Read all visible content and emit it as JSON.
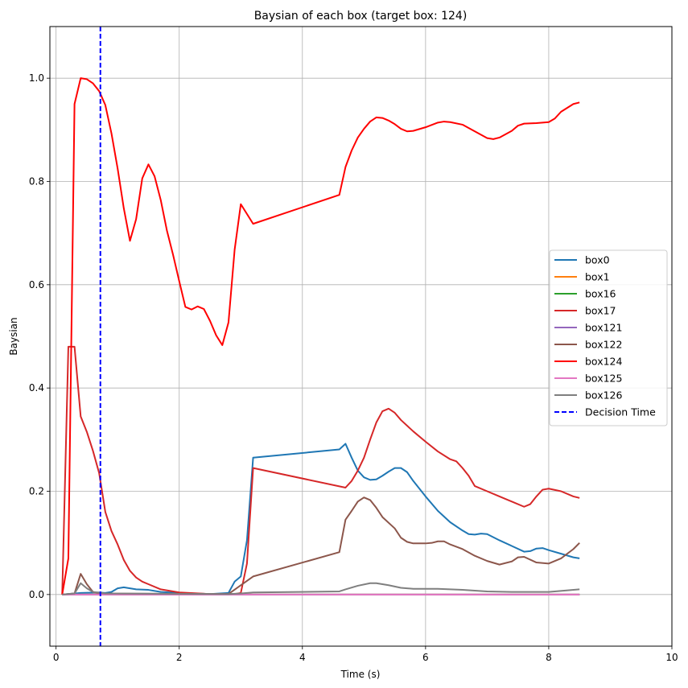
{
  "chart_data": {
    "type": "line",
    "title": "Baysian of each box (target box: 124)",
    "xlabel": "Time (s)",
    "ylabel": "Baysian",
    "xlim": [
      -0.1,
      10
    ],
    "ylim": [
      -0.1,
      1.1
    ],
    "x_ticks": [
      0,
      2,
      4,
      6,
      8,
      10
    ],
    "x_tick_labels": [
      "0",
      "2",
      "4",
      "6",
      "8",
      "10"
    ],
    "y_ticks": [
      0.0,
      0.2,
      0.4,
      0.6,
      0.8,
      1.0
    ],
    "y_tick_labels": [
      "0.0",
      "0.2",
      "0.4",
      "0.6",
      "0.8",
      "1.0"
    ],
    "grid": true,
    "legend_position": "center-right",
    "series": [
      {
        "name": "box0",
        "color": "#1f77b4",
        "style": "solid",
        "points": [
          [
            0.1,
            0
          ],
          [
            0.4,
            0.003
          ],
          [
            0.7,
            0.004
          ],
          [
            0.8,
            0.003
          ],
          [
            0.9,
            0.005
          ],
          [
            1.0,
            0.012
          ],
          [
            1.1,
            0.014
          ],
          [
            1.3,
            0.01
          ],
          [
            1.5,
            0.009
          ],
          [
            1.7,
            0.005
          ],
          [
            2.0,
            0.003
          ],
          [
            2.5,
            0.001
          ],
          [
            2.8,
            0.003
          ],
          [
            2.9,
            0.025
          ],
          [
            3.0,
            0.035
          ],
          [
            3.1,
            0.105
          ],
          [
            3.2,
            0.265
          ],
          [
            4.6,
            0.281
          ],
          [
            4.7,
            0.292
          ],
          [
            4.8,
            0.265
          ],
          [
            4.9,
            0.24
          ],
          [
            5.0,
            0.227
          ],
          [
            5.1,
            0.222
          ],
          [
            5.2,
            0.223
          ],
          [
            5.3,
            0.23
          ],
          [
            5.4,
            0.238
          ],
          [
            5.5,
            0.245
          ],
          [
            5.6,
            0.245
          ],
          [
            5.7,
            0.237
          ],
          [
            5.8,
            0.22
          ],
          [
            6.0,
            0.19
          ],
          [
            6.2,
            0.162
          ],
          [
            6.4,
            0.14
          ],
          [
            6.6,
            0.124
          ],
          [
            6.7,
            0.117
          ],
          [
            6.8,
            0.116
          ],
          [
            6.9,
            0.118
          ],
          [
            7.0,
            0.117
          ],
          [
            7.2,
            0.105
          ],
          [
            7.4,
            0.094
          ],
          [
            7.6,
            0.083
          ],
          [
            7.7,
            0.084
          ],
          [
            7.8,
            0.089
          ],
          [
            7.9,
            0.09
          ],
          [
            8.0,
            0.086
          ],
          [
            8.2,
            0.079
          ],
          [
            8.4,
            0.072
          ],
          [
            8.5,
            0.07
          ]
        ]
      },
      {
        "name": "box1",
        "color": "#ff7f0e",
        "style": "solid",
        "points": [
          [
            0.1,
            0
          ],
          [
            8.5,
            0
          ]
        ]
      },
      {
        "name": "box16",
        "color": "#2ca02c",
        "style": "solid",
        "points": [
          [
            0.1,
            0
          ],
          [
            8.5,
            0
          ]
        ]
      },
      {
        "name": "box17",
        "color": "#d62728",
        "style": "solid",
        "points": [
          [
            0.1,
            0
          ],
          [
            0.2,
            0.48
          ],
          [
            0.3,
            0.48
          ],
          [
            0.4,
            0.345
          ],
          [
            0.5,
            0.315
          ],
          [
            0.6,
            0.278
          ],
          [
            0.7,
            0.235
          ],
          [
            0.8,
            0.16
          ],
          [
            0.9,
            0.123
          ],
          [
            1.0,
            0.097
          ],
          [
            1.1,
            0.067
          ],
          [
            1.2,
            0.046
          ],
          [
            1.3,
            0.033
          ],
          [
            1.4,
            0.025
          ],
          [
            1.5,
            0.02
          ],
          [
            1.7,
            0.01
          ],
          [
            2.0,
            0.004
          ],
          [
            2.5,
            0.001
          ],
          [
            2.9,
            0.001
          ],
          [
            3.0,
            0.003
          ],
          [
            3.1,
            0.06
          ],
          [
            3.2,
            0.245
          ],
          [
            4.7,
            0.207
          ],
          [
            4.8,
            0.22
          ],
          [
            4.9,
            0.24
          ],
          [
            5.0,
            0.265
          ],
          [
            5.1,
            0.3
          ],
          [
            5.2,
            0.333
          ],
          [
            5.3,
            0.355
          ],
          [
            5.4,
            0.36
          ],
          [
            5.5,
            0.352
          ],
          [
            5.6,
            0.338
          ],
          [
            5.8,
            0.316
          ],
          [
            6.0,
            0.296
          ],
          [
            6.2,
            0.277
          ],
          [
            6.4,
            0.262
          ],
          [
            6.5,
            0.258
          ],
          [
            6.6,
            0.245
          ],
          [
            6.7,
            0.23
          ],
          [
            6.8,
            0.21
          ],
          [
            7.0,
            0.2
          ],
          [
            7.2,
            0.19
          ],
          [
            7.4,
            0.18
          ],
          [
            7.6,
            0.17
          ],
          [
            7.7,
            0.175
          ],
          [
            7.8,
            0.19
          ],
          [
            7.9,
            0.203
          ],
          [
            8.0,
            0.205
          ],
          [
            8.2,
            0.2
          ],
          [
            8.4,
            0.19
          ],
          [
            8.5,
            0.187
          ]
        ]
      },
      {
        "name": "box121",
        "color": "#9467bd",
        "style": "solid",
        "points": [
          [
            0.1,
            0
          ],
          [
            8.5,
            0
          ]
        ]
      },
      {
        "name": "box122",
        "color": "#8c564b",
        "style": "solid",
        "points": [
          [
            0.1,
            0
          ],
          [
            0.3,
            0.002
          ],
          [
            0.4,
            0.04
          ],
          [
            0.5,
            0.02
          ],
          [
            0.6,
            0.005
          ],
          [
            0.7,
            0.002
          ],
          [
            2.8,
            0.001
          ],
          [
            3.0,
            0.018
          ],
          [
            3.2,
            0.035
          ],
          [
            4.6,
            0.082
          ],
          [
            4.7,
            0.145
          ],
          [
            4.8,
            0.162
          ],
          [
            4.9,
            0.18
          ],
          [
            5.0,
            0.188
          ],
          [
            5.1,
            0.183
          ],
          [
            5.2,
            0.168
          ],
          [
            5.3,
            0.15
          ],
          [
            5.5,
            0.128
          ],
          [
            5.6,
            0.11
          ],
          [
            5.7,
            0.102
          ],
          [
            5.8,
            0.099
          ],
          [
            6.0,
            0.099
          ],
          [
            6.1,
            0.1
          ],
          [
            6.2,
            0.103
          ],
          [
            6.3,
            0.103
          ],
          [
            6.4,
            0.097
          ],
          [
            6.6,
            0.088
          ],
          [
            6.8,
            0.075
          ],
          [
            7.0,
            0.065
          ],
          [
            7.2,
            0.058
          ],
          [
            7.4,
            0.064
          ],
          [
            7.5,
            0.072
          ],
          [
            7.6,
            0.073
          ],
          [
            7.8,
            0.062
          ],
          [
            8.0,
            0.06
          ],
          [
            8.2,
            0.07
          ],
          [
            8.4,
            0.088
          ],
          [
            8.5,
            0.1
          ]
        ]
      },
      {
        "name": "box124",
        "color": "#ff0000",
        "style": "solid",
        "points": [
          [
            0.1,
            0
          ],
          [
            0.2,
            0.07
          ],
          [
            0.3,
            0.95
          ],
          [
            0.4,
            1.0
          ],
          [
            0.5,
            0.998
          ],
          [
            0.6,
            0.99
          ],
          [
            0.7,
            0.975
          ],
          [
            0.8,
            0.948
          ],
          [
            0.9,
            0.893
          ],
          [
            1.0,
            0.825
          ],
          [
            1.1,
            0.748
          ],
          [
            1.2,
            0.685
          ],
          [
            1.3,
            0.727
          ],
          [
            1.4,
            0.806
          ],
          [
            1.5,
            0.833
          ],
          [
            1.6,
            0.81
          ],
          [
            1.7,
            0.764
          ],
          [
            1.8,
            0.705
          ],
          [
            1.9,
            0.658
          ],
          [
            2.0,
            0.607
          ],
          [
            2.1,
            0.557
          ],
          [
            2.2,
            0.552
          ],
          [
            2.3,
            0.558
          ],
          [
            2.4,
            0.553
          ],
          [
            2.5,
            0.53
          ],
          [
            2.6,
            0.502
          ],
          [
            2.7,
            0.483
          ],
          [
            2.8,
            0.527
          ],
          [
            2.9,
            0.668
          ],
          [
            3.0,
            0.756
          ],
          [
            3.2,
            0.718
          ],
          [
            4.6,
            0.774
          ],
          [
            4.7,
            0.828
          ],
          [
            4.8,
            0.86
          ],
          [
            4.9,
            0.885
          ],
          [
            5.0,
            0.902
          ],
          [
            5.1,
            0.916
          ],
          [
            5.2,
            0.924
          ],
          [
            5.3,
            0.923
          ],
          [
            5.4,
            0.918
          ],
          [
            5.5,
            0.911
          ],
          [
            5.6,
            0.902
          ],
          [
            5.7,
            0.897
          ],
          [
            5.8,
            0.898
          ],
          [
            6.0,
            0.905
          ],
          [
            6.2,
            0.914
          ],
          [
            6.3,
            0.916
          ],
          [
            6.4,
            0.915
          ],
          [
            6.6,
            0.91
          ],
          [
            6.8,
            0.897
          ],
          [
            7.0,
            0.884
          ],
          [
            7.1,
            0.882
          ],
          [
            7.2,
            0.885
          ],
          [
            7.4,
            0.898
          ],
          [
            7.5,
            0.908
          ],
          [
            7.6,
            0.912
          ],
          [
            7.8,
            0.913
          ],
          [
            8.0,
            0.915
          ],
          [
            8.1,
            0.922
          ],
          [
            8.2,
            0.935
          ],
          [
            8.4,
            0.95
          ],
          [
            8.5,
            0.953
          ]
        ]
      },
      {
        "name": "box125",
        "color": "#e377c2",
        "style": "solid",
        "points": [
          [
            0.1,
            0
          ],
          [
            8.5,
            0
          ]
        ]
      },
      {
        "name": "box126",
        "color": "#7f7f7f",
        "style": "solid",
        "points": [
          [
            0.1,
            0
          ],
          [
            0.3,
            0.002
          ],
          [
            0.4,
            0.022
          ],
          [
            0.5,
            0.012
          ],
          [
            0.6,
            0.005
          ],
          [
            0.8,
            0.002
          ],
          [
            2.8,
            0.001
          ],
          [
            3.0,
            0.002
          ],
          [
            3.2,
            0.004
          ],
          [
            4.6,
            0.006
          ],
          [
            4.7,
            0.01
          ],
          [
            4.9,
            0.017
          ],
          [
            5.1,
            0.022
          ],
          [
            5.2,
            0.022
          ],
          [
            5.4,
            0.018
          ],
          [
            5.6,
            0.013
          ],
          [
            5.8,
            0.011
          ],
          [
            6.2,
            0.011
          ],
          [
            6.6,
            0.009
          ],
          [
            7.0,
            0.006
          ],
          [
            7.4,
            0.005
          ],
          [
            7.8,
            0.005
          ],
          [
            8.0,
            0.005
          ],
          [
            8.5,
            0.01
          ]
        ]
      },
      {
        "name": "Decision Time",
        "color": "#0000ff",
        "style": "dashed",
        "vline_x": 0.72
      }
    ]
  }
}
